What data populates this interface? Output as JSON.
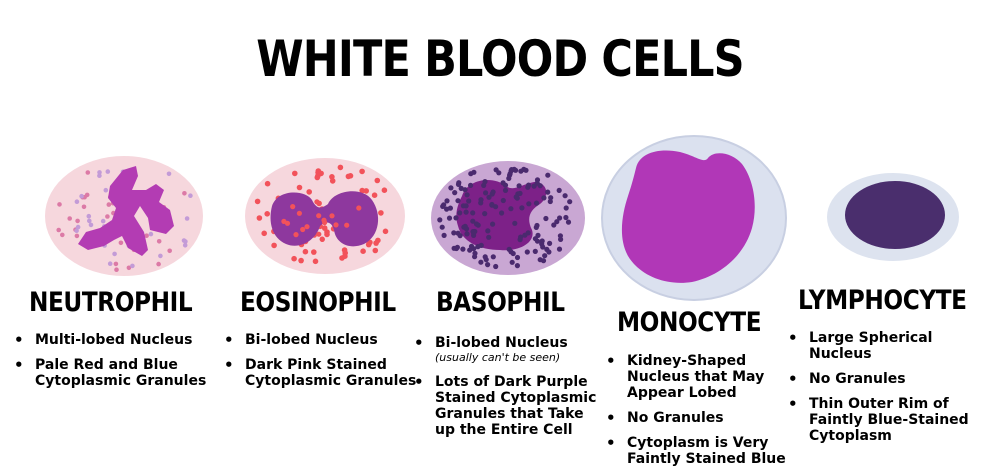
{
  "title": "WHITE BLOOD CELLS",
  "cells": [
    {
      "name": "NEUTROPHIL",
      "bullets": [
        "Multi-lobed Nucleus",
        "Pale Red and Blue Cytoplasmic Granules"
      ],
      "colors": {
        "cytoplasm": "#f6d7dd",
        "nucleus": "#b33cb3",
        "granules_a": "#dc7aa6",
        "granules_b": "#c39bd7"
      }
    },
    {
      "name": "EOSINOPHIL",
      "bullets": [
        "Bi-lobed Nucleus",
        "Dark Pink Stained Cytoplasmic Granules"
      ],
      "colors": {
        "cytoplasm": "#f6d7dd",
        "nucleus": "#8e389e",
        "granules_a": "#f2525a"
      }
    },
    {
      "name": "BASOPHIL",
      "bullets": [
        "Bi-lobed Nucleus",
        "Lots of Dark Purple Stained Cytoplasmic Granules that Take up the Entire Cell"
      ],
      "note": "(usually can't be seen)",
      "colors": {
        "cytoplasm": "#c9a7d3",
        "nucleus": "#7d2188",
        "granules_a": "#4a2a6e"
      }
    },
    {
      "name": "MONOCYTE",
      "bullets": [
        "Kidney-Shaped Nucleus that May Appear Lobed",
        "No Granules",
        "Cytoplasm is Very Faintly Stained Blue"
      ],
      "colors": {
        "cytoplasm": "#dbe1ef",
        "nucleus": "#b137b7"
      }
    },
    {
      "name": "LYMPHOCYTE",
      "bullets": [
        "Large Spherical Nucleus",
        "No Granules",
        "Thin Outer Rim of Faintly Blue-Stained Cytoplasm"
      ],
      "colors": {
        "cytoplasm": "#dde3ef",
        "nucleus": "#4a2e6d"
      }
    }
  ]
}
